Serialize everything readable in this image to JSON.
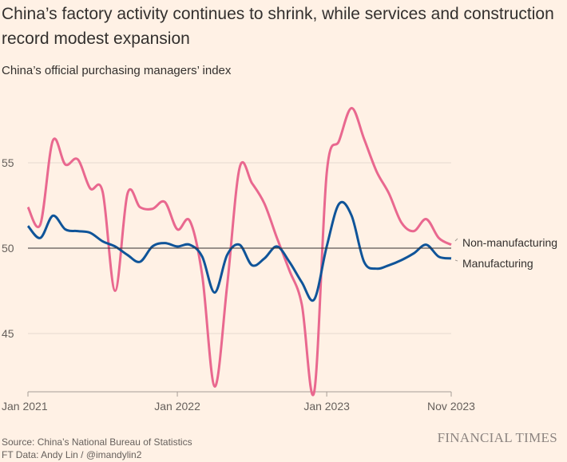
{
  "header": {
    "title": "China’s factory activity continues to shrink, while services and construction record modest expansion",
    "subtitle": "China’s official purchasing managers’ index"
  },
  "footer": {
    "source": "Source: China’s National Bureau of Statistics",
    "credit": "FT Data: Andy Lin / @imandylin2",
    "logo": "FINANCIAL TIMES"
  },
  "colors": {
    "non_manufacturing": "#e9688f",
    "manufacturing": "#0f5499",
    "background": "#fff1e5"
  },
  "chart_data": {
    "type": "line",
    "title": "China’s official purchasing managers’ index",
    "x_start": "Jan 2021",
    "x_end": "Nov 2023",
    "x_ticks": [
      "Jan 2021",
      "Jan 2022",
      "Jan 2023",
      "Nov 2023"
    ],
    "y_ticks": [
      "55",
      "50",
      "45"
    ],
    "ylim": [
      41.5,
      58.5
    ],
    "reference_line": 50,
    "series": [
      {
        "name": "Non-manufacturing",
        "color": "#e9688f",
        "values": [
          52.4,
          51.4,
          56.3,
          54.9,
          55.2,
          53.5,
          53.3,
          47.5,
          53.2,
          52.4,
          52.3,
          52.7,
          51.1,
          51.6,
          48.4,
          41.9,
          47.8,
          54.7,
          53.8,
          52.6,
          50.6,
          48.7,
          46.7,
          41.6,
          54.4,
          56.3,
          58.2,
          56.4,
          54.5,
          53.2,
          51.5,
          51.0,
          51.7,
          50.6,
          50.2
        ]
      },
      {
        "name": "Manufacturing",
        "color": "#0f5499",
        "values": [
          51.3,
          50.6,
          51.9,
          51.1,
          51.0,
          50.9,
          50.4,
          50.1,
          49.6,
          49.2,
          50.1,
          50.3,
          50.1,
          50.2,
          49.5,
          47.4,
          49.6,
          50.2,
          49.0,
          49.4,
          50.1,
          49.2,
          48.0,
          47.0,
          50.1,
          52.6,
          51.9,
          49.2,
          48.8,
          49.0,
          49.3,
          49.7,
          50.2,
          49.5,
          49.4
        ]
      }
    ]
  }
}
